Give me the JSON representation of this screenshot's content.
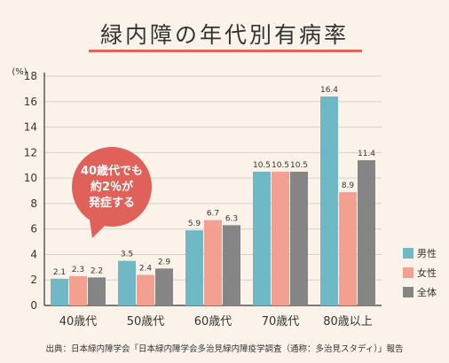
{
  "title": "緑内障の年代別有病率",
  "source": "出典：日本緑内障学会「日本緑内障学会多治見緑内障疫学調査（通称：多治見スタディ）」報告",
  "chart_data": {
    "type": "bar",
    "categories": [
      "40歳代",
      "50歳代",
      "60歳代",
      "70歳代",
      "80歳以上"
    ],
    "series": [
      {
        "name": "男性",
        "values": [
          2.1,
          3.5,
          5.9,
          10.5,
          16.4
        ],
        "color": "#6fb8c6"
      },
      {
        "name": "女性",
        "values": [
          2.3,
          2.4,
          6.7,
          10.5,
          8.9
        ],
        "color": "#f3a091"
      },
      {
        "name": "全体",
        "values": [
          2.2,
          2.9,
          6.3,
          10.5,
          11.4
        ],
        "color": "#858585"
      }
    ],
    "y_unit": "(%)",
    "yticks": [
      0,
      2,
      4,
      6,
      8,
      10,
      12,
      14,
      16,
      18
    ],
    "ylim": [
      0,
      18
    ],
    "grid": true,
    "legend_position": "bottom-right",
    "annotation": {
      "text": [
        "40歳代でも",
        "約2％が",
        "発症する"
      ],
      "color": "#e06159"
    }
  }
}
